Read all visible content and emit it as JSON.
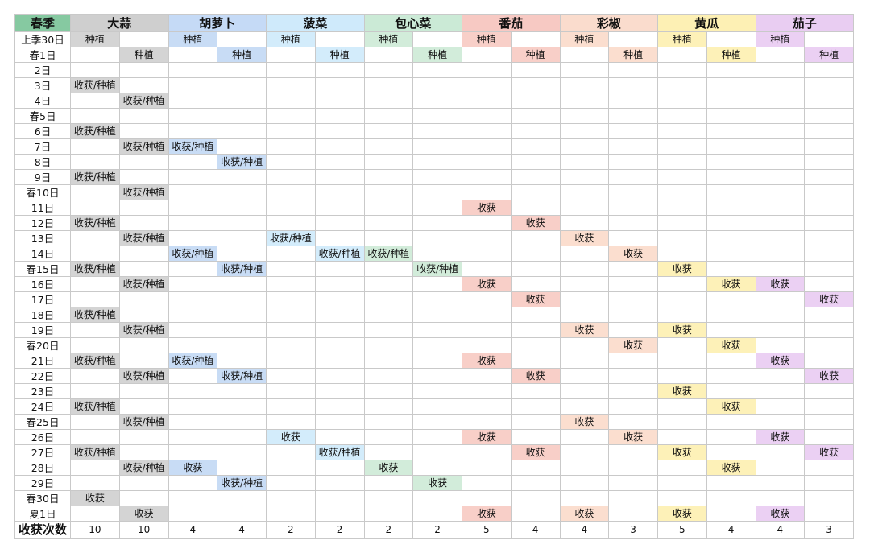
{
  "header": {
    "season_label": "春季",
    "crops": [
      "大蒜",
      "胡萝卜",
      "菠菜",
      "包心菜",
      "番茄",
      "彩椒",
      "黄瓜",
      "茄子"
    ]
  },
  "colors": {
    "header": [
      "#86c9a1",
      "#cfcfcf",
      "#c5daf6",
      "#cfeafb",
      "#cbead6",
      "#f7c9c3",
      "#fadccd",
      "#fdf0b4",
      "#e9cdf2"
    ],
    "cell": [
      "#d4d4d4",
      "#c8dcf5",
      "#d3ecfb",
      "#d2ecda",
      "#f8cfc8",
      "#fbdecf",
      "#fdf1b8",
      "#ebd0f3"
    ]
  },
  "rows": [
    {
      "day": "上季30日",
      "cells": [
        "种植",
        "",
        "种植",
        "",
        "种植",
        "",
        "种植",
        "",
        "种植",
        "",
        "种植",
        "",
        "种植",
        "",
        "种植",
        ""
      ]
    },
    {
      "day": "春1日",
      "cells": [
        "",
        "种植",
        "",
        "种植",
        "",
        "种植",
        "",
        "种植",
        "",
        "种植",
        "",
        "种植",
        "",
        "种植",
        "",
        "种植"
      ]
    },
    {
      "day": "2日",
      "cells": [
        "",
        "",
        "",
        "",
        "",
        "",
        "",
        "",
        "",
        "",
        "",
        "",
        "",
        "",
        "",
        ""
      ]
    },
    {
      "day": "3日",
      "cells": [
        "收获/种植",
        "",
        "",
        "",
        "",
        "",
        "",
        "",
        "",
        "",
        "",
        "",
        "",
        "",
        "",
        ""
      ]
    },
    {
      "day": "4日",
      "cells": [
        "",
        "收获/种植",
        "",
        "",
        "",
        "",
        "",
        "",
        "",
        "",
        "",
        "",
        "",
        "",
        "",
        ""
      ]
    },
    {
      "day": "春5日",
      "cells": [
        "",
        "",
        "",
        "",
        "",
        "",
        "",
        "",
        "",
        "",
        "",
        "",
        "",
        "",
        "",
        ""
      ]
    },
    {
      "day": "6日",
      "cells": [
        "收获/种植",
        "",
        "",
        "",
        "",
        "",
        "",
        "",
        "",
        "",
        "",
        "",
        "",
        "",
        "",
        ""
      ]
    },
    {
      "day": "7日",
      "cells": [
        "",
        "收获/种植",
        "收获/种植",
        "",
        "",
        "",
        "",
        "",
        "",
        "",
        "",
        "",
        "",
        "",
        "",
        ""
      ]
    },
    {
      "day": "8日",
      "cells": [
        "",
        "",
        "",
        "收获/种植",
        "",
        "",
        "",
        "",
        "",
        "",
        "",
        "",
        "",
        "",
        "",
        ""
      ]
    },
    {
      "day": "9日",
      "cells": [
        "收获/种植",
        "",
        "",
        "",
        "",
        "",
        "",
        "",
        "",
        "",
        "",
        "",
        "",
        "",
        "",
        ""
      ]
    },
    {
      "day": "春10日",
      "cells": [
        "",
        "收获/种植",
        "",
        "",
        "",
        "",
        "",
        "",
        "",
        "",
        "",
        "",
        "",
        "",
        "",
        ""
      ]
    },
    {
      "day": "11日",
      "cells": [
        "",
        "",
        "",
        "",
        "",
        "",
        "",
        "",
        "收获",
        "",
        "",
        "",
        "",
        "",
        "",
        ""
      ]
    },
    {
      "day": "12日",
      "cells": [
        "收获/种植",
        "",
        "",
        "",
        "",
        "",
        "",
        "",
        "",
        "收获",
        "",
        "",
        "",
        "",
        "",
        ""
      ]
    },
    {
      "day": "13日",
      "cells": [
        "",
        "收获/种植",
        "",
        "",
        "收获/种植",
        "",
        "",
        "",
        "",
        "",
        "收获",
        "",
        "",
        "",
        "",
        ""
      ]
    },
    {
      "day": "14日",
      "cells": [
        "",
        "",
        "收获/种植",
        "",
        "",
        "收获/种植",
        "收获/种植",
        "",
        "",
        "",
        "",
        "收获",
        "",
        "",
        "",
        ""
      ]
    },
    {
      "day": "春15日",
      "cells": [
        "收获/种植",
        "",
        "",
        "收获/种植",
        "",
        "",
        "",
        "收获/种植",
        "",
        "",
        "",
        "",
        "收获",
        "",
        "",
        ""
      ]
    },
    {
      "day": "16日",
      "cells": [
        "",
        "收获/种植",
        "",
        "",
        "",
        "",
        "",
        "",
        "收获",
        "",
        "",
        "",
        "",
        "收获",
        "收获",
        ""
      ]
    },
    {
      "day": "17日",
      "cells": [
        "",
        "",
        "",
        "",
        "",
        "",
        "",
        "",
        "",
        "收获",
        "",
        "",
        "",
        "",
        "",
        "收获"
      ]
    },
    {
      "day": "18日",
      "cells": [
        "收获/种植",
        "",
        "",
        "",
        "",
        "",
        "",
        "",
        "",
        "",
        "",
        "",
        "",
        "",
        "",
        ""
      ]
    },
    {
      "day": "19日",
      "cells": [
        "",
        "收获/种植",
        "",
        "",
        "",
        "",
        "",
        "",
        "",
        "",
        "收获",
        "",
        "收获",
        "",
        "",
        ""
      ]
    },
    {
      "day": "春20日",
      "cells": [
        "",
        "",
        "",
        "",
        "",
        "",
        "",
        "",
        "",
        "",
        "",
        "收获",
        "",
        "收获",
        "",
        ""
      ]
    },
    {
      "day": "21日",
      "cells": [
        "收获/种植",
        "",
        "收获/种植",
        "",
        "",
        "",
        "",
        "",
        "收获",
        "",
        "",
        "",
        "",
        "",
        "收获",
        ""
      ]
    },
    {
      "day": "22日",
      "cells": [
        "",
        "收获/种植",
        "",
        "收获/种植",
        "",
        "",
        "",
        "",
        "",
        "收获",
        "",
        "",
        "",
        "",
        "",
        "收获"
      ]
    },
    {
      "day": "23日",
      "cells": [
        "",
        "",
        "",
        "",
        "",
        "",
        "",
        "",
        "",
        "",
        "",
        "",
        "收获",
        "",
        "",
        ""
      ]
    },
    {
      "day": "24日",
      "cells": [
        "收获/种植",
        "",
        "",
        "",
        "",
        "",
        "",
        "",
        "",
        "",
        "",
        "",
        "",
        "收获",
        "",
        ""
      ]
    },
    {
      "day": "春25日",
      "cells": [
        "",
        "收获/种植",
        "",
        "",
        "",
        "",
        "",
        "",
        "",
        "",
        "收获",
        "",
        "",
        "",
        "",
        ""
      ]
    },
    {
      "day": "26日",
      "cells": [
        "",
        "",
        "",
        "",
        "收获",
        "",
        "",
        "",
        "收获",
        "",
        "",
        "收获",
        "",
        "",
        "收获",
        ""
      ]
    },
    {
      "day": "27日",
      "cells": [
        "收获/种植",
        "",
        "",
        "",
        "",
        "收获/种植",
        "",
        "",
        "",
        "收获",
        "",
        "",
        "收获",
        "",
        "",
        "收获"
      ]
    },
    {
      "day": "28日",
      "cells": [
        "",
        "收获/种植",
        "收获",
        "",
        "",
        "",
        "收获",
        "",
        "",
        "",
        "",
        "",
        "",
        "收获",
        "",
        ""
      ]
    },
    {
      "day": "29日",
      "cells": [
        "",
        "",
        "",
        "收获/种植",
        "",
        "",
        "",
        "收获",
        "",
        "",
        "",
        "",
        "",
        "",
        "",
        ""
      ]
    },
    {
      "day": "春30日",
      "cells": [
        "收获",
        "",
        "",
        "",
        "",
        "",
        "",
        "",
        "",
        "",
        "",
        "",
        "",
        "",
        "",
        ""
      ]
    },
    {
      "day": "夏1日",
      "cells": [
        "",
        "收获",
        "",
        "",
        "",
        "",
        "",
        "",
        "收获",
        "",
        "收获",
        "",
        "收获",
        "",
        "收获",
        ""
      ]
    }
  ],
  "footer": {
    "label": "收获次数",
    "values": [
      "10",
      "10",
      "4",
      "4",
      "2",
      "2",
      "2",
      "2",
      "5",
      "4",
      "4",
      "3",
      "5",
      "4",
      "4",
      "3"
    ]
  }
}
